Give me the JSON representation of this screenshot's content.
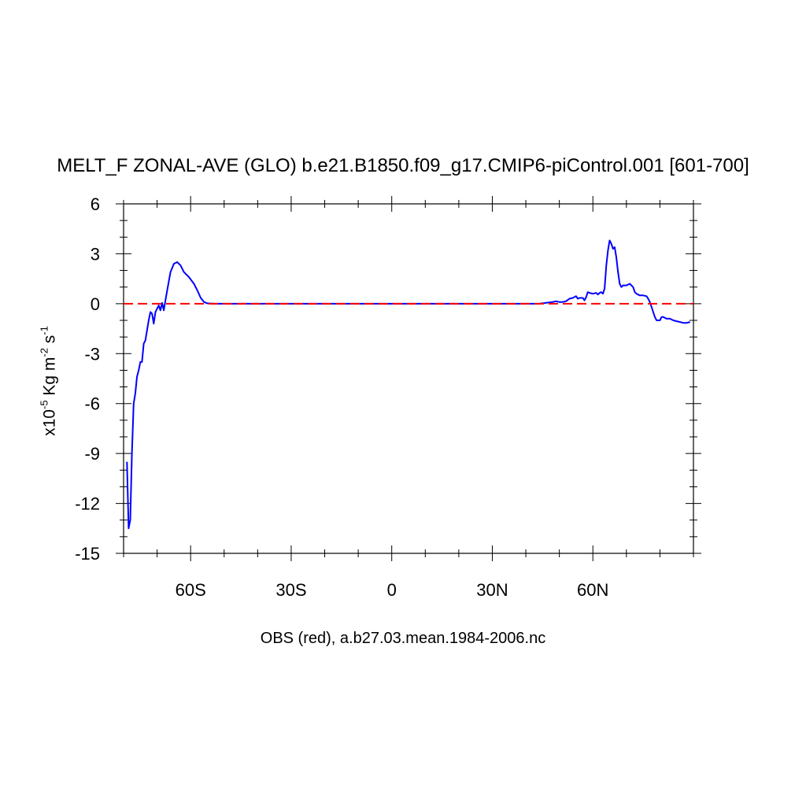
{
  "chart_data": {
    "type": "line",
    "title": "MELT_F ZONAL-AVE (GLO) b.e21.B1850.f09_g17.CMIP6-piControl.001 [601-700]",
    "ylabel": {
      "prefix": "x10",
      "exp": "-5",
      "unit1": " Kg m",
      "exp2": "-2",
      "unit2": " s",
      "exp3": "-1"
    },
    "xcaption": "OBS (red), a.b27.03.mean.1984-2006.nc",
    "xlim": [
      -80,
      90
    ],
    "ylim": [
      -15,
      6
    ],
    "xticks": [
      {
        "value": -60,
        "label": "60S"
      },
      {
        "value": -30,
        "label": "30S"
      },
      {
        "value": 0,
        "label": "0"
      },
      {
        "value": 30,
        "label": "30N"
      },
      {
        "value": 60,
        "label": "60N"
      }
    ],
    "yticks": [
      {
        "value": 6,
        "label": "6"
      },
      {
        "value": 3,
        "label": "3"
      },
      {
        "value": 0,
        "label": "0"
      },
      {
        "value": -3,
        "label": "-3"
      },
      {
        "value": -6,
        "label": "-6"
      },
      {
        "value": -9,
        "label": "-9"
      },
      {
        "value": -12,
        "label": "-12"
      },
      {
        "value": -15,
        "label": "-15"
      }
    ],
    "series": [
      {
        "color": "#0000ff",
        "style": "solid",
        "points": [
          [
            -79,
            -9.5
          ],
          [
            -78.5,
            -13.5
          ],
          [
            -78,
            -13.0
          ],
          [
            -77.5,
            -9.0
          ],
          [
            -77,
            -6.0
          ],
          [
            -76.5,
            -5.4
          ],
          [
            -76,
            -4.4
          ],
          [
            -75.5,
            -4.0
          ],
          [
            -75,
            -3.5
          ],
          [
            -74.5,
            -3.5
          ],
          [
            -74,
            -2.4
          ],
          [
            -73.5,
            -2.2
          ],
          [
            -73,
            -1.6
          ],
          [
            -72.5,
            -1.0
          ],
          [
            -72,
            -0.5
          ],
          [
            -71.5,
            -0.6
          ],
          [
            -71,
            -1.2
          ],
          [
            -70.5,
            -0.5
          ],
          [
            -70,
            -0.3
          ],
          [
            -69.5,
            -0.1
          ],
          [
            -69,
            -0.4
          ],
          [
            -68.5,
            0.05
          ],
          [
            -68,
            -0.4
          ],
          [
            -67.5,
            0.2
          ],
          [
            -67,
            0.8
          ],
          [
            -66,
            1.9
          ],
          [
            -65,
            2.4
          ],
          [
            -64,
            2.5
          ],
          [
            -63,
            2.3
          ],
          [
            -62,
            1.9
          ],
          [
            -60.5,
            1.6
          ],
          [
            -59,
            1.2
          ],
          [
            -58,
            0.8
          ],
          [
            -57,
            0.35
          ],
          [
            -56,
            0.1
          ],
          [
            -55,
            0.02
          ],
          [
            -53,
            0.0
          ],
          [
            -30,
            0.0
          ],
          [
            0,
            0.0
          ],
          [
            30,
            0.0
          ],
          [
            44,
            0.0
          ],
          [
            46,
            0.05
          ],
          [
            48,
            0.1
          ],
          [
            49,
            0.15
          ],
          [
            50,
            0.1
          ],
          [
            51,
            0.1
          ],
          [
            52,
            0.15
          ],
          [
            53,
            0.3
          ],
          [
            54,
            0.35
          ],
          [
            55,
            0.45
          ],
          [
            55.5,
            0.3
          ],
          [
            56,
            0.35
          ],
          [
            57,
            0.35
          ],
          [
            57.5,
            0.2
          ],
          [
            58,
            0.4
          ],
          [
            58.5,
            0.7
          ],
          [
            59,
            0.65
          ],
          [
            60,
            0.6
          ],
          [
            61,
            0.65
          ],
          [
            61.5,
            0.55
          ],
          [
            62,
            0.65
          ],
          [
            62.5,
            0.7
          ],
          [
            63,
            0.6
          ],
          [
            63.5,
            0.9
          ],
          [
            64,
            2.3
          ],
          [
            64.5,
            3.2
          ],
          [
            65,
            3.8
          ],
          [
            65.5,
            3.6
          ],
          [
            66,
            3.3
          ],
          [
            66.5,
            3.4
          ],
          [
            67,
            2.8
          ],
          [
            67.5,
            1.9
          ],
          [
            68,
            1.2
          ],
          [
            68.5,
            1.0
          ],
          [
            69,
            1.1
          ],
          [
            70,
            1.1
          ],
          [
            71,
            1.2
          ],
          [
            72,
            1.0
          ],
          [
            72.5,
            0.7
          ],
          [
            73,
            0.6
          ],
          [
            74,
            0.5
          ],
          [
            75,
            0.5
          ],
          [
            76,
            0.45
          ],
          [
            76.5,
            0.3
          ],
          [
            77,
            0.1
          ],
          [
            77.5,
            -0.2
          ],
          [
            78,
            -0.5
          ],
          [
            78.5,
            -0.8
          ],
          [
            79,
            -1.0
          ],
          [
            80,
            -1.0
          ],
          [
            80.5,
            -0.8
          ],
          [
            81,
            -0.8
          ],
          [
            82,
            -0.9
          ],
          [
            83,
            -0.9
          ],
          [
            84,
            -1.0
          ],
          [
            85,
            -1.05
          ],
          [
            86,
            -1.1
          ],
          [
            87,
            -1.15
          ],
          [
            88,
            -1.15
          ],
          [
            89,
            -1.1
          ]
        ]
      },
      {
        "color": "#ff0000",
        "style": "dashed",
        "points": [
          [
            -80,
            0
          ],
          [
            90,
            0
          ]
        ]
      }
    ],
    "grid": false,
    "legend": "none"
  }
}
